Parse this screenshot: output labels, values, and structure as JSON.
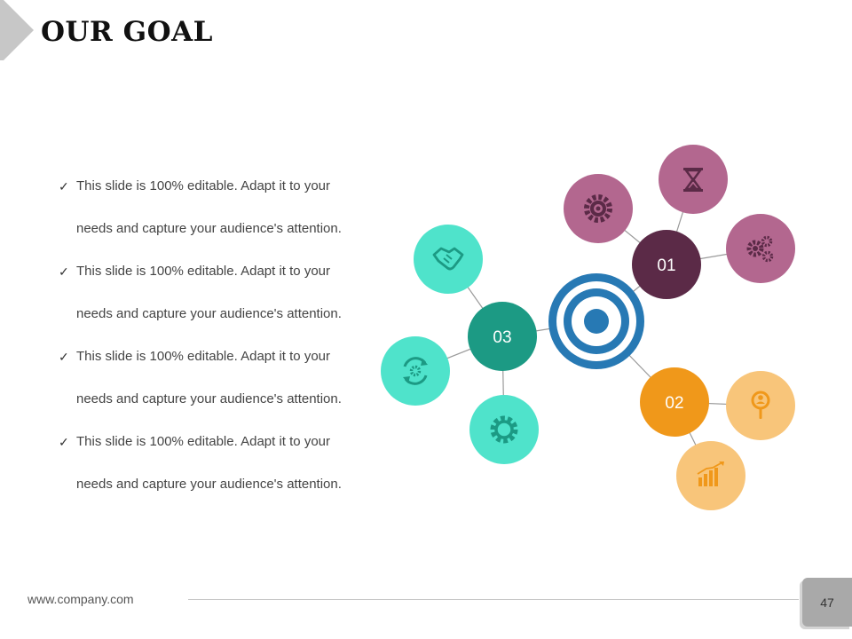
{
  "slide": {
    "title": "OUR GOAL",
    "footer_url": "www.company.com",
    "page_number": "47"
  },
  "bullets": [
    {
      "line1": "This slide is 100% editable. Adapt it to your",
      "line2": "needs and capture your audience's attention."
    },
    {
      "line1": "This slide is 100% editable. Adapt it to your",
      "line2": "needs and capture your audience's attention."
    },
    {
      "line1": "This slide is 100% editable. Adapt it to your",
      "line2": "needs and capture your audience's attention."
    },
    {
      "line1": "This slide is 100% editable. Adapt it to your",
      "line2": "needs and capture your audience's attention."
    }
  ],
  "diagram": {
    "center_icon": "target-icon",
    "nodes": [
      {
        "label": "01",
        "color": "#5b2a47",
        "satellite_color": "#b3678f",
        "icons": [
          "gear-target-icon",
          "hourglass-icon",
          "gears-icon"
        ]
      },
      {
        "label": "02",
        "color": "#f0981a",
        "satellite_color": "#f8c57a",
        "icons": [
          "search-person-icon",
          "bar-chart-icon"
        ]
      },
      {
        "label": "03",
        "color": "#1c9a84",
        "satellite_color": "#4fe3cb",
        "icons": [
          "handshake-icon",
          "refresh-gear-icon",
          "gear-icon"
        ]
      }
    ]
  },
  "colors": {
    "target_blue": "#2779b4",
    "connector": "#9a9a9a",
    "corner_arrow": "#c7c7c7"
  }
}
